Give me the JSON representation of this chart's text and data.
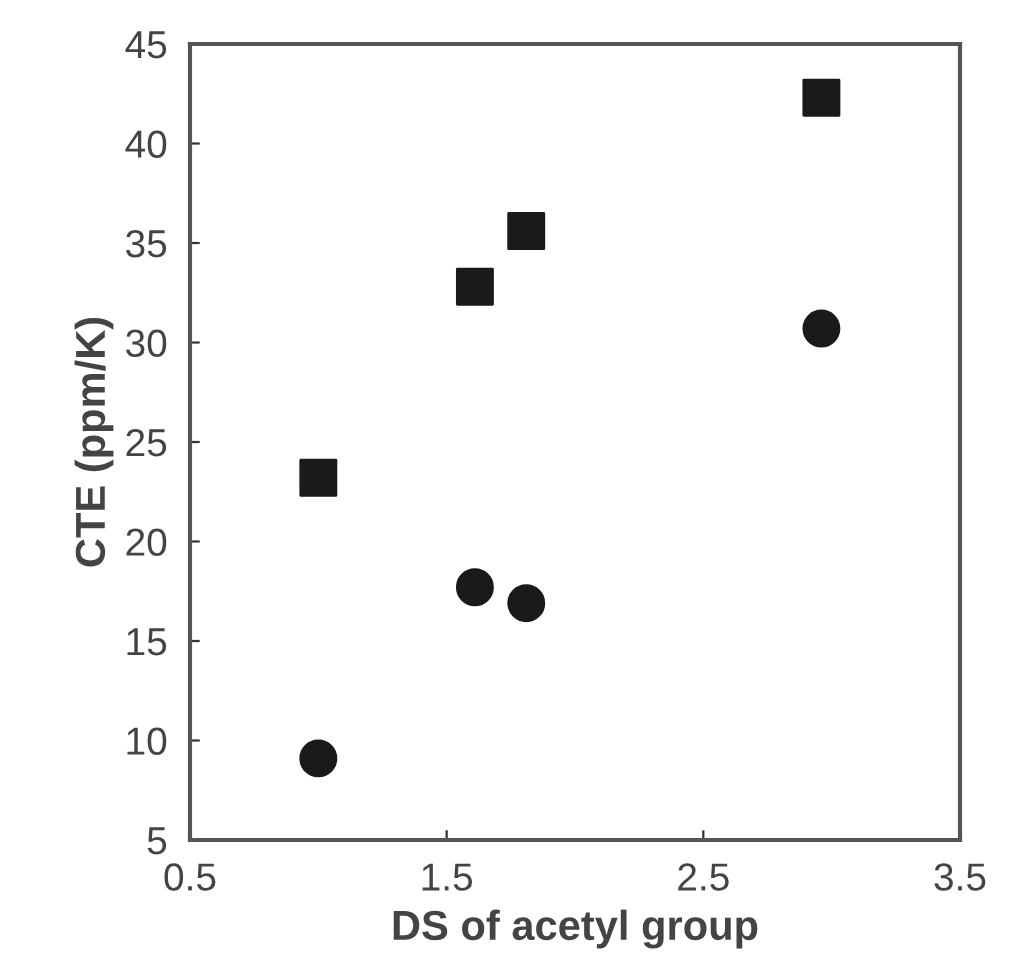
{
  "chart_data": {
    "type": "scatter",
    "xlabel": "DS of acetyl group",
    "ylabel": "CTE (ppm/K)",
    "xlim": [
      0.5,
      3.5
    ],
    "xticks": [
      0.5,
      1.5,
      2.5,
      3.5
    ],
    "ylim": [
      5,
      45
    ],
    "yticks": [
      5,
      10,
      15,
      20,
      25,
      30,
      35,
      40,
      45
    ],
    "grid": false,
    "series": [
      {
        "color": "#1a1a1a",
        "marker": "square",
        "x": [
          1.0,
          1.61,
          1.81,
          2.96
        ],
        "values": [
          23.2,
          32.8,
          35.6,
          42.3
        ]
      },
      {
        "color": "#1a1a1a",
        "marker": "circle",
        "x": [
          1.0,
          1.61,
          1.81,
          2.96
        ],
        "values": [
          9.1,
          17.7,
          16.9,
          30.7
        ]
      }
    ]
  }
}
